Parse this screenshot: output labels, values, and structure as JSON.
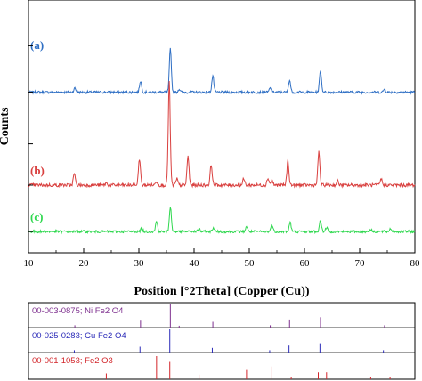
{
  "chart_data": {
    "type": "line",
    "xlabel": "Position [°2Theta] (Copper (Cu))",
    "ylabel": "Counts",
    "xlim": [
      10,
      80
    ],
    "x_ticks": [
      "10",
      "20",
      "30",
      "40",
      "50",
      "60",
      "70",
      "80"
    ],
    "y_ticks_labeled": false,
    "series": [
      {
        "name": "(a)",
        "color": "#2f6fc4",
        "baseline": 0.9,
        "noise": 0.012,
        "peaks": [
          {
            "x": 18.4,
            "h": 0.04
          },
          {
            "x": 30.3,
            "h": 0.11
          },
          {
            "x": 35.7,
            "h": 0.42
          },
          {
            "x": 37.3,
            "h": 0.03
          },
          {
            "x": 43.4,
            "h": 0.16
          },
          {
            "x": 53.8,
            "h": 0.04
          },
          {
            "x": 57.3,
            "h": 0.12
          },
          {
            "x": 62.9,
            "h": 0.21
          },
          {
            "x": 74.5,
            "h": 0.03
          }
        ]
      },
      {
        "name": "(b)",
        "color": "#d9403f",
        "baseline": 0.0,
        "noise": 0.016,
        "peaks": [
          {
            "x": 18.3,
            "h": 0.11
          },
          {
            "x": 24.1,
            "h": 0.02
          },
          {
            "x": 30.1,
            "h": 0.26
          },
          {
            "x": 33.2,
            "h": 0.04
          },
          {
            "x": 35.5,
            "h": 1.0
          },
          {
            "x": 36.9,
            "h": 0.06
          },
          {
            "x": 38.9,
            "h": 0.28
          },
          {
            "x": 43.1,
            "h": 0.2
          },
          {
            "x": 49.0,
            "h": 0.06
          },
          {
            "x": 53.4,
            "h": 0.07
          },
          {
            "x": 54.1,
            "h": 0.05
          },
          {
            "x": 57.0,
            "h": 0.24
          },
          {
            "x": 62.6,
            "h": 0.32
          },
          {
            "x": 66.0,
            "h": 0.04
          },
          {
            "x": 73.9,
            "h": 0.06
          }
        ]
      },
      {
        "name": "(c)",
        "color": "#2fd84f",
        "baseline": -0.45,
        "noise": 0.012,
        "peaks": [
          {
            "x": 30.5,
            "h": 0.03
          },
          {
            "x": 33.2,
            "h": 0.1
          },
          {
            "x": 35.7,
            "h": 0.24
          },
          {
            "x": 40.9,
            "h": 0.03
          },
          {
            "x": 43.5,
            "h": 0.04
          },
          {
            "x": 49.5,
            "h": 0.05
          },
          {
            "x": 54.1,
            "h": 0.07
          },
          {
            "x": 57.4,
            "h": 0.09
          },
          {
            "x": 62.9,
            "h": 0.11
          },
          {
            "x": 64.0,
            "h": 0.04
          },
          {
            "x": 72.0,
            "h": 0.02
          },
          {
            "x": 75.6,
            "h": 0.03
          }
        ]
      }
    ],
    "references": [
      {
        "label": "00-003-0875; Ni Fe2 O4",
        "color": "#7d2f8e",
        "lines": [
          {
            "x": 18.4,
            "i": 0.1
          },
          {
            "x": 30.3,
            "i": 0.3
          },
          {
            "x": 35.7,
            "i": 1.0
          },
          {
            "x": 37.3,
            "i": 0.08
          },
          {
            "x": 43.4,
            "i": 0.25
          },
          {
            "x": 53.8,
            "i": 0.1
          },
          {
            "x": 57.3,
            "i": 0.35
          },
          {
            "x": 62.9,
            "i": 0.45
          },
          {
            "x": 74.5,
            "i": 0.1
          }
        ]
      },
      {
        "label": "00-025-0283; Cu Fe2 O4",
        "color": "#2a2ab8",
        "lines": [
          {
            "x": 18.3,
            "i": 0.1
          },
          {
            "x": 30.2,
            "i": 0.25
          },
          {
            "x": 35.6,
            "i": 1.0
          },
          {
            "x": 43.3,
            "i": 0.2
          },
          {
            "x": 53.7,
            "i": 0.1
          },
          {
            "x": 57.2,
            "i": 0.3
          },
          {
            "x": 62.8,
            "i": 0.4
          },
          {
            "x": 74.3,
            "i": 0.1
          }
        ]
      },
      {
        "label": "00-001-1053; Fe2 O3",
        "color": "#d2252a",
        "lines": [
          {
            "x": 24.1,
            "i": 0.25
          },
          {
            "x": 33.2,
            "i": 1.0
          },
          {
            "x": 35.6,
            "i": 0.75
          },
          {
            "x": 40.9,
            "i": 0.2
          },
          {
            "x": 49.5,
            "i": 0.4
          },
          {
            "x": 54.1,
            "i": 0.55
          },
          {
            "x": 57.6,
            "i": 0.1
          },
          {
            "x": 62.5,
            "i": 0.3
          },
          {
            "x": 64.0,
            "i": 0.3
          },
          {
            "x": 72.0,
            "i": 0.1
          },
          {
            "x": 75.5,
            "i": 0.08
          }
        ]
      }
    ]
  }
}
